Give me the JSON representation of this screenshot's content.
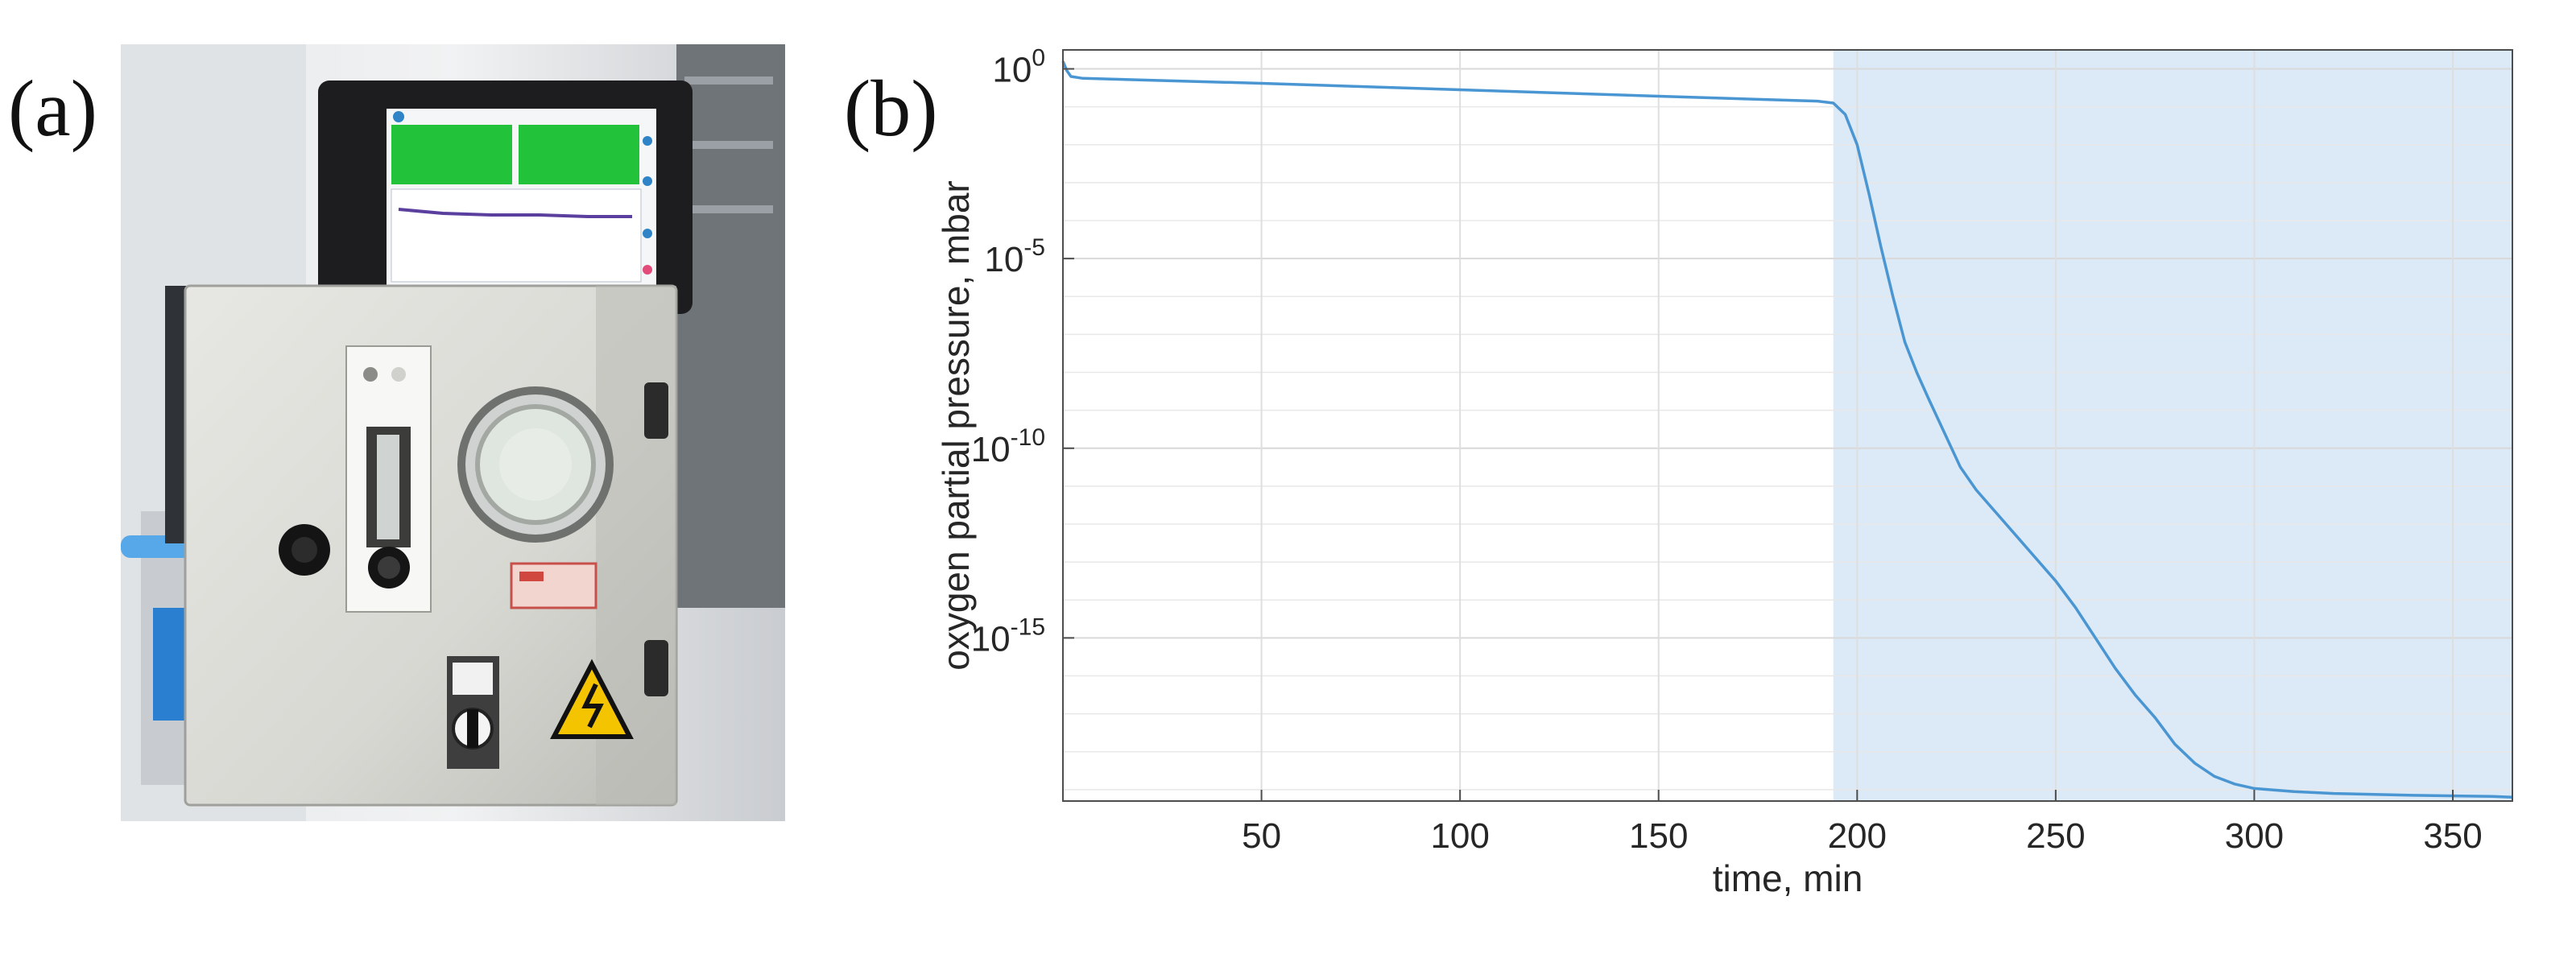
{
  "panels": {
    "a_label": "(a)",
    "b_label": "(b)"
  },
  "photo": {
    "description_icons": [
      "monitor-screen",
      "control-cabinet",
      "flow-meter",
      "viewport-window",
      "rotary-switch",
      "warning-high-voltage-icon"
    ]
  },
  "chart_data": {
    "type": "line",
    "xlabel": "time, min",
    "ylabel": "oxygen partial pressure, mbar",
    "xlim": [
      0,
      365
    ],
    "ylim_log10": [
      -19.3,
      0.5
    ],
    "yscale": "log",
    "xticks": [
      50,
      100,
      150,
      200,
      250,
      300,
      350
    ],
    "yticks": [
      {
        "base": "10",
        "exp": "0"
      },
      {
        "base": "10",
        "exp": "-5"
      },
      {
        "base": "10",
        "exp": "-10"
      },
      {
        "base": "10",
        "exp": "-15"
      }
    ],
    "grid": true,
    "shaded_region": {
      "x_start": 194,
      "x_end": 365,
      "color": "#dce9f6"
    },
    "series": [
      {
        "color": "#4a96d2",
        "x": [
          0,
          1,
          2,
          5,
          50,
          100,
          150,
          190,
          194,
          197,
          200,
          203,
          206,
          209,
          212,
          215,
          218,
          222,
          226,
          230,
          235,
          240,
          245,
          250,
          255,
          260,
          265,
          270,
          275,
          280,
          285,
          290,
          295,
          300,
          310,
          320,
          340,
          360,
          365
        ],
        "y_log10": [
          0.2,
          -0.05,
          -0.2,
          -0.25,
          -0.38,
          -0.55,
          -0.72,
          -0.85,
          -0.9,
          -1.2,
          -2.0,
          -3.3,
          -4.7,
          -6.0,
          -7.2,
          -8.0,
          -8.7,
          -9.6,
          -10.5,
          -11.1,
          -11.7,
          -12.3,
          -12.9,
          -13.5,
          -14.2,
          -15.0,
          -15.8,
          -16.5,
          -17.1,
          -17.8,
          -18.3,
          -18.65,
          -18.85,
          -18.97,
          -19.05,
          -19.1,
          -19.15,
          -19.18,
          -19.2
        ]
      }
    ]
  }
}
